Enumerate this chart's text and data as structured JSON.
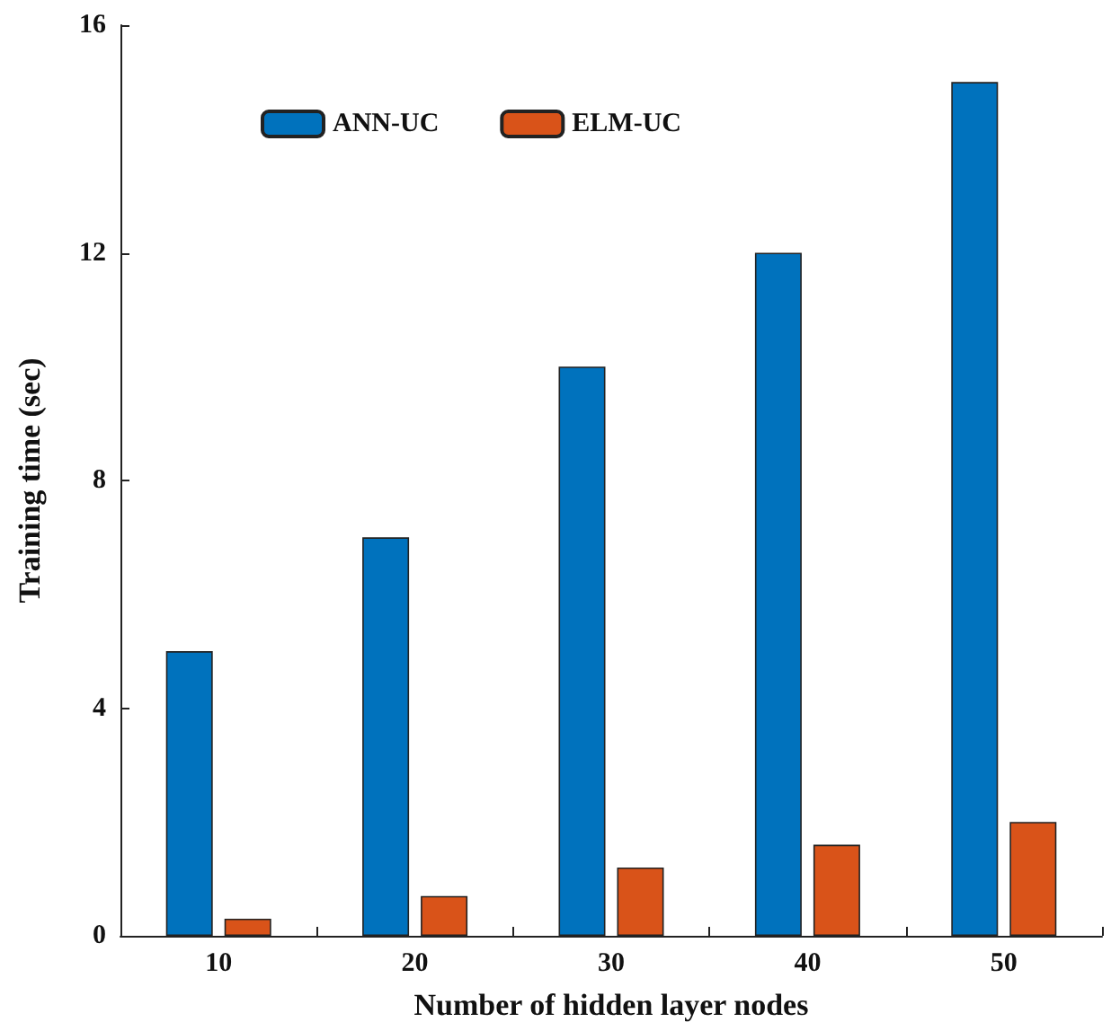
{
  "chart_data": {
    "type": "bar",
    "xlabel": "Number of hidden layer nodes",
    "ylabel": "Training time (sec)",
    "categories": [
      "10",
      "20",
      "30",
      "40",
      "50"
    ],
    "series": [
      {
        "name": "ANN-UC",
        "color": "#0072bd",
        "values": [
          5,
          7,
          10,
          12,
          15
        ]
      },
      {
        "name": "ELM-UC",
        "color": "#d95319",
        "values": [
          0.3,
          0.7,
          1.2,
          1.6,
          2
        ]
      }
    ],
    "ylim": [
      0,
      16
    ],
    "yticks": [
      0,
      4,
      8,
      12,
      16
    ],
    "grid": false,
    "legend": "top left"
  }
}
